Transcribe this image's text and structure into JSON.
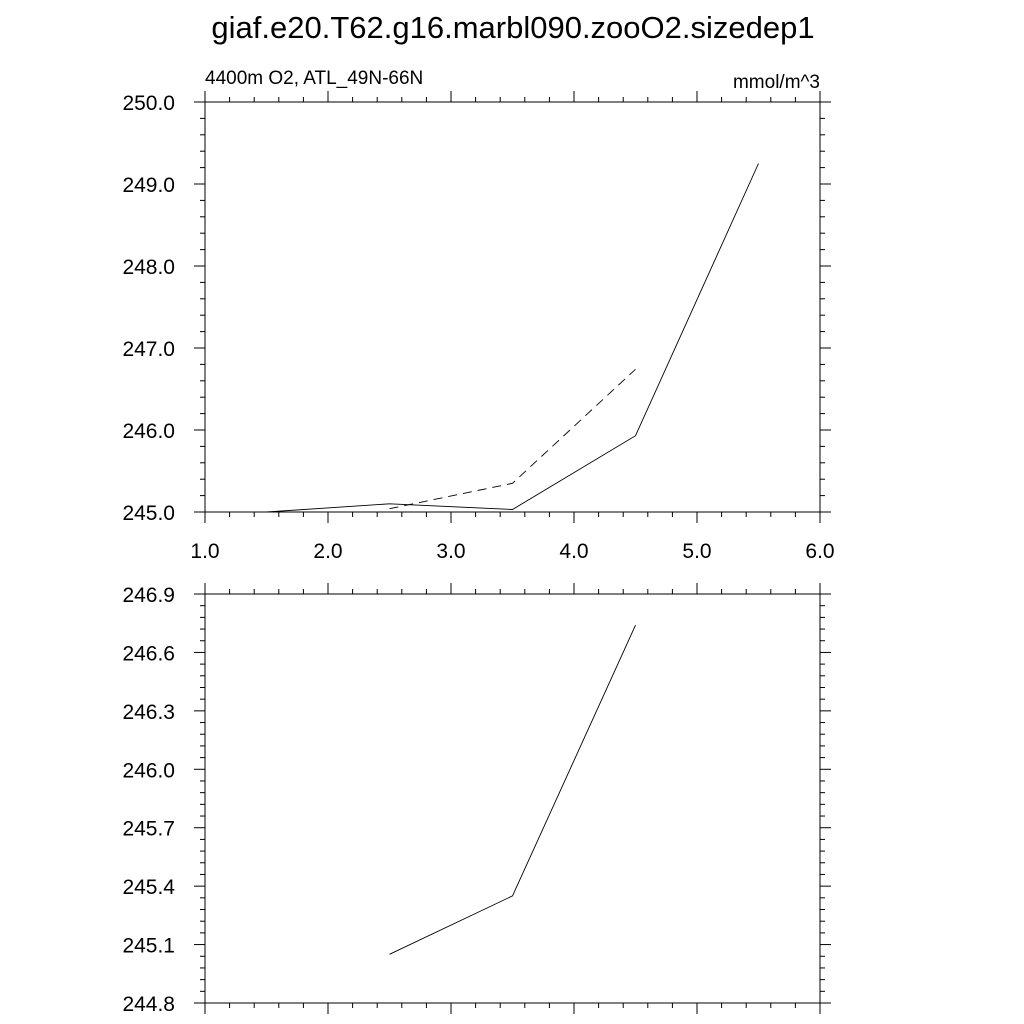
{
  "title": "giaf.e20.T62.g16.marbl090.zooO2.sizedep1",
  "chart_data": [
    {
      "type": "line",
      "subtitle_left": "4400m O2, ATL_49N-66N",
      "subtitle_right": "mmol/m^3",
      "xlim": [
        1.0,
        6.0
      ],
      "ylim": [
        245.0,
        250.0
      ],
      "x_ticks": [
        "1.0",
        "2.0",
        "3.0",
        "4.0",
        "5.0",
        "6.0"
      ],
      "y_ticks": [
        "245.0",
        "246.0",
        "247.0",
        "248.0",
        "249.0",
        "250.0"
      ],
      "series": [
        {
          "style": "solid",
          "x": [
            1.5,
            2.5,
            3.5,
            4.5,
            5.5
          ],
          "y": [
            245.0,
            245.1,
            245.03,
            245.93,
            249.25
          ]
        },
        {
          "style": "dashed",
          "x": [
            2.5,
            3.5,
            4.5
          ],
          "y": [
            245.04,
            245.35,
            246.74
          ]
        }
      ]
    },
    {
      "type": "line",
      "xlim": [
        1.0,
        6.0
      ],
      "ylim": [
        244.8,
        246.9
      ],
      "y_ticks": [
        "244.8",
        "245.1",
        "245.4",
        "245.7",
        "246.0",
        "246.3",
        "246.6",
        "246.9"
      ],
      "series": [
        {
          "style": "solid",
          "x": [
            2.5,
            3.5,
            4.5
          ],
          "y": [
            245.05,
            245.35,
            246.74
          ]
        }
      ]
    }
  ]
}
